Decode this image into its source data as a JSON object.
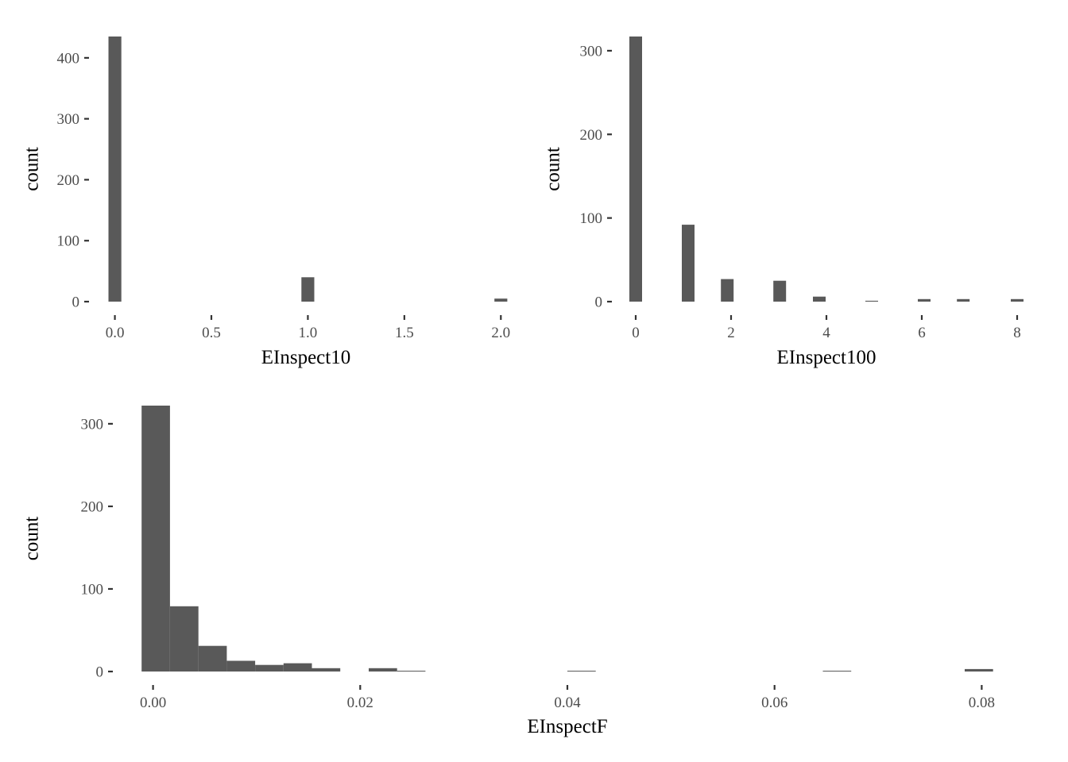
{
  "colors": {
    "bar": "#595959",
    "tick": "#333333",
    "tick_label": "#4d4d4d",
    "background": "#ffffff"
  },
  "chart_data": [
    {
      "type": "bar",
      "xlabel": "EInspect10",
      "ylabel": "count",
      "grid": false,
      "xlim": [
        -0.06,
        2.04
      ],
      "ylim": [
        0,
        435
      ],
      "xticks": [
        0.0,
        0.5,
        1.0,
        1.5,
        2.0
      ],
      "xtick_labels": [
        "0.0",
        "0.5",
        "1.0",
        "1.5",
        "2.0"
      ],
      "yticks": [
        0,
        100,
        200,
        300,
        400
      ],
      "ytick_labels": [
        "0",
        "100",
        "200",
        "300",
        "400"
      ],
      "bin_width": 0.0667,
      "bins": [
        {
          "x": 0.0,
          "count": 435
        },
        {
          "x": 1.0,
          "count": 40
        },
        {
          "x": 2.0,
          "count": 5
        }
      ]
    },
    {
      "type": "bar",
      "xlabel": "EInspect100",
      "ylabel": "count",
      "grid": false,
      "xlim": [
        -0.2,
        8.2
      ],
      "ylim": [
        0,
        317
      ],
      "xticks": [
        0,
        2,
        4,
        6,
        8
      ],
      "xtick_labels": [
        "0",
        "2",
        "4",
        "6",
        "8"
      ],
      "yticks": [
        0,
        100,
        200,
        300
      ],
      "ytick_labels": [
        "0",
        "100",
        "200",
        "300"
      ],
      "bin_width": 0.267,
      "bins": [
        {
          "x": 0,
          "count": 317
        },
        {
          "x": 1.1,
          "count": 92
        },
        {
          "x": 1.92,
          "count": 27
        },
        {
          "x": 3.02,
          "count": 25
        },
        {
          "x": 3.85,
          "count": 6
        },
        {
          "x": 4.95,
          "count": 1
        },
        {
          "x": 6.05,
          "count": 3
        },
        {
          "x": 6.87,
          "count": 3
        },
        {
          "x": 8.0,
          "count": 3
        }
      ]
    },
    {
      "type": "bar",
      "xlabel": "EInspectF",
      "ylabel": "count",
      "grid": false,
      "xlim": [
        -0.0025,
        0.0825
      ],
      "ylim": [
        0,
        322
      ],
      "xticks": [
        0.0,
        0.02,
        0.04,
        0.06,
        0.08
      ],
      "xtick_labels": [
        "0.00",
        "0.02",
        "0.04",
        "0.06",
        "0.08"
      ],
      "yticks": [
        0,
        100,
        200,
        300
      ],
      "ytick_labels": [
        "0",
        "100",
        "200",
        "300"
      ],
      "bin_width": 0.00274,
      "bins": [
        {
          "x": 0.00027,
          "count": 322
        },
        {
          "x": 0.00301,
          "count": 79
        },
        {
          "x": 0.00575,
          "count": 31
        },
        {
          "x": 0.00849,
          "count": 13
        },
        {
          "x": 0.01123,
          "count": 8
        },
        {
          "x": 0.01397,
          "count": 10
        },
        {
          "x": 0.01671,
          "count": 4
        },
        {
          "x": 0.02219,
          "count": 4
        },
        {
          "x": 0.02493,
          "count": 1
        },
        {
          "x": 0.04137,
          "count": 1
        },
        {
          "x": 0.06603,
          "count": 1
        },
        {
          "x": 0.07973,
          "count": 3
        }
      ]
    }
  ]
}
